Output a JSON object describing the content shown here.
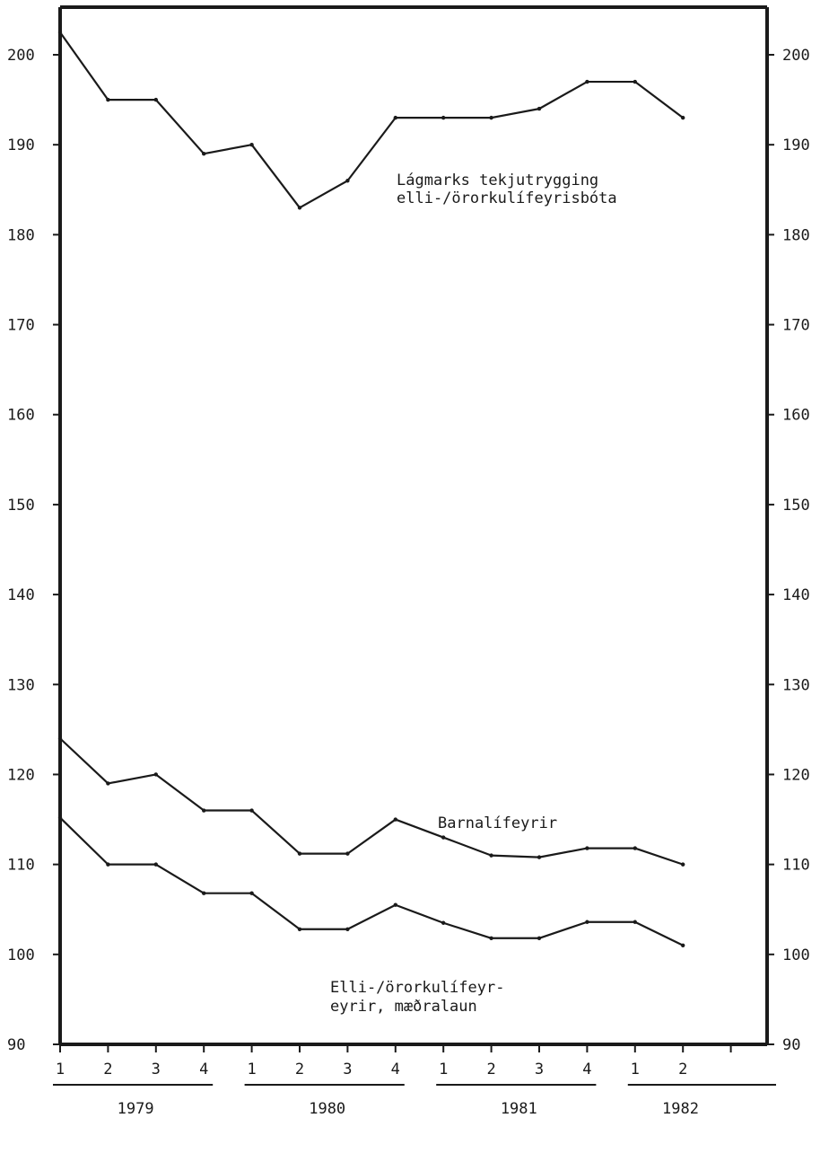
{
  "chart_data": {
    "type": "line",
    "ylim": [
      90,
      205
    ],
    "y_ticks": [
      90,
      100,
      110,
      120,
      130,
      140,
      150,
      160,
      170,
      180,
      190,
      200
    ],
    "x_quarters": [
      "1",
      "2",
      "3",
      "4",
      "1",
      "2",
      "3",
      "4",
      "1",
      "2",
      "3",
      "4",
      "1",
      "2"
    ],
    "years": [
      "1979",
      "1980",
      "1981",
      "1982"
    ],
    "grid": false,
    "series": [
      {
        "name": "Lágmarks tekjutrygging elli-/örorkulífeyrisbóta",
        "values": [
          202.5,
          195.0,
          195.0,
          189.0,
          190.0,
          183.0,
          186.0,
          193.0,
          193.0,
          193.0,
          194.0,
          197.0,
          197.0,
          193.0
        ]
      },
      {
        "name": "Barnalífeyrir",
        "values": [
          124.0,
          119.0,
          120.0,
          116.0,
          116.0,
          111.2,
          111.2,
          115.0,
          113.0,
          111.0,
          110.8,
          111.8,
          111.8,
          110.0
        ]
      },
      {
        "name": "Elli-/örorkulífeyrir, mæðralaun",
        "values": [
          115.2,
          110.0,
          110.0,
          106.8,
          106.8,
          102.8,
          102.8,
          105.5,
          103.5,
          101.8,
          101.8,
          103.6,
          103.6,
          101.0
        ]
      }
    ],
    "annotations": [
      {
        "lines": [
          "Lágmarks tekjutrygging",
          "elli-/örorkulífeyrisbóta"
        ]
      },
      {
        "lines": [
          "Barnalífeyrir"
        ]
      },
      {
        "lines": [
          "Elli-/örorkulífeyr-",
          "eyrir, mæðralaun"
        ]
      }
    ]
  }
}
